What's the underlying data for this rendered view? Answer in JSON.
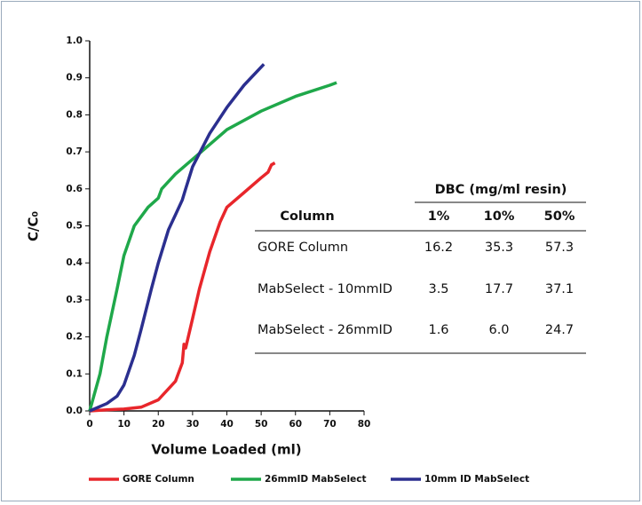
{
  "chart_data": {
    "type": "line",
    "xlabel": "Volume Loaded (ml)",
    "ylabel": "C/C₀",
    "xlim": [
      0,
      80
    ],
    "xticks": [
      0,
      10,
      20,
      30,
      40,
      50,
      60,
      70,
      80
    ],
    "ylim": [
      0,
      1
    ],
    "yticks": [
      {
        "value": 0,
        "label": "0.0"
      },
      0.1,
      0.2,
      0.3,
      0.4,
      0.5,
      0.6,
      0.7,
      0.8,
      0.9,
      {
        "value": 1,
        "label": "1.0"
      }
    ],
    "legend": "bottom",
    "series": [
      {
        "name": "GORE Column",
        "color": "#e8262b",
        "x": [
          0,
          5,
          10,
          15,
          20,
          25,
          27,
          27.5,
          28,
          30,
          32,
          35,
          38,
          40,
          45,
          50,
          52,
          53,
          54
        ],
        "values": [
          0,
          0.003,
          0.005,
          0.01,
          0.03,
          0.08,
          0.13,
          0.18,
          0.17,
          0.25,
          0.33,
          0.43,
          0.51,
          0.55,
          0.59,
          0.63,
          0.645,
          0.665,
          0.67
        ]
      },
      {
        "name": "26mmID MabSelect",
        "color": "#1fa84a",
        "x": [
          0,
          3,
          5,
          8,
          10,
          13,
          17,
          20,
          21,
          25,
          30,
          35,
          40,
          50,
          60,
          70,
          72
        ],
        "values": [
          0,
          0.1,
          0.2,
          0.33,
          0.42,
          0.5,
          0.55,
          0.575,
          0.6,
          0.64,
          0.68,
          0.72,
          0.76,
          0.81,
          0.85,
          0.88,
          0.887
        ]
      },
      {
        "name": "10mm ID MabSelect",
        "color": "#2b2f8f",
        "x": [
          0,
          5,
          8,
          10,
          13,
          15,
          18,
          20,
          23,
          25,
          27,
          28,
          30,
          35,
          40,
          45,
          50.8
        ],
        "values": [
          0,
          0.02,
          0.04,
          0.07,
          0.15,
          0.22,
          0.33,
          0.4,
          0.49,
          0.53,
          0.57,
          0.6,
          0.66,
          0.75,
          0.82,
          0.88,
          0.937
        ]
      }
    ]
  },
  "table": {
    "group_header": "DBC (mg/ml resin)",
    "columns": [
      "Column",
      "1%",
      "10%",
      "50%"
    ],
    "rows": [
      [
        "GORE Column",
        "16.2",
        "35.3",
        "57.3"
      ],
      [
        "MabSelect - 10mmID",
        "3.5",
        "17.7",
        "37.1"
      ],
      [
        "MabSelect - 26mmID",
        "1.6",
        "6.0",
        "24.7"
      ]
    ]
  }
}
